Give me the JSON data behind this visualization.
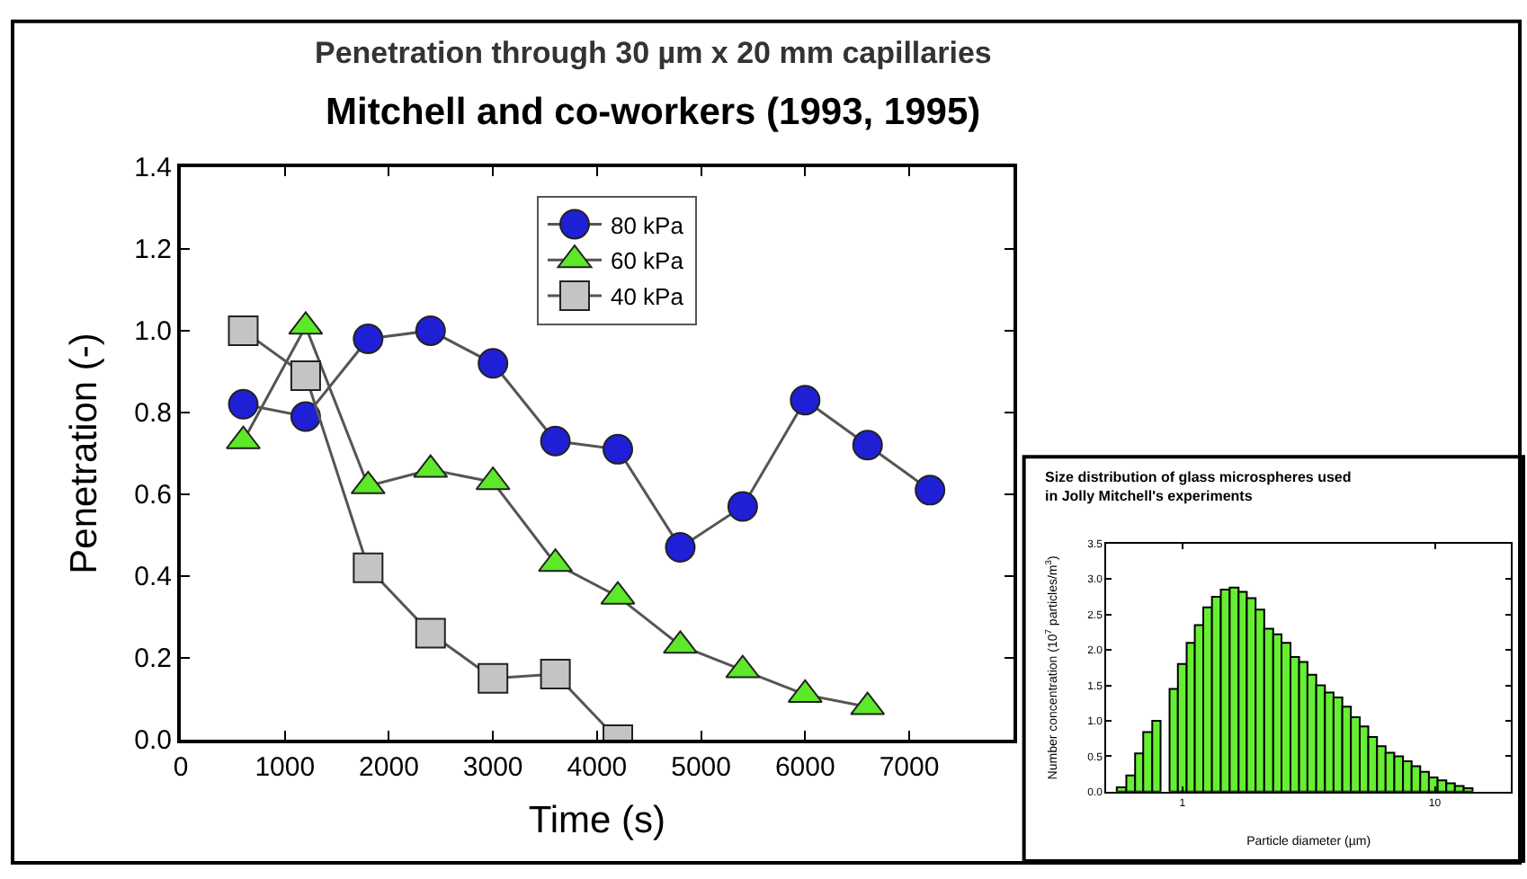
{
  "chart_data": [
    {
      "type": "line",
      "title": "Penetration through 30 µm x 20 mm capillaries",
      "subtitle": "Mitchell and co-workers (1993, 1995)",
      "xlabel": "Time (s)",
      "ylabel": "Penetration (-)",
      "xlim": [
        0,
        8000
      ],
      "xticks": [
        0,
        1000,
        2000,
        3000,
        4000,
        5000,
        6000,
        7000
      ],
      "ylim": [
        0,
        1.4
      ],
      "yticks": [
        {
          "value": 0,
          "label": "0.0"
        },
        {
          "value": 0.2,
          "label": "0.2"
        },
        {
          "value": 0.4,
          "label": "0.4"
        },
        {
          "value": 0.6,
          "label": "0.6"
        },
        {
          "value": 0.8,
          "label": "0.8"
        },
        {
          "value": 1.0,
          "label": "1.0"
        },
        {
          "value": 1.2,
          "label": "1.2"
        },
        {
          "value": 1.4,
          "label": "1.4"
        }
      ],
      "legend": "top right",
      "line_style": "solid",
      "series": [
        {
          "name": "80 kPa",
          "color": "#1f1fd6",
          "marker": "circle",
          "x": [
            600,
            1200,
            1800,
            2400,
            3000,
            3600,
            4200,
            4800,
            5400,
            6000,
            6600,
            7200
          ],
          "values": [
            0.82,
            0.79,
            0.98,
            1.0,
            0.92,
            0.73,
            0.71,
            0.47,
            0.57,
            0.83,
            0.72,
            0.61
          ]
        },
        {
          "name": "60 kPa",
          "color": "#5ee82a",
          "marker": "triangle",
          "x": [
            600,
            1200,
            1800,
            2400,
            3000,
            3600,
            4200,
            4800,
            5400,
            6000,
            6600
          ],
          "values": [
            0.73,
            1.01,
            0.62,
            0.66,
            0.63,
            0.43,
            0.35,
            0.23,
            0.17,
            0.11,
            0.08
          ]
        },
        {
          "name": "40 kPa",
          "color": "#c4c4c4",
          "marker": "square",
          "x": [
            600,
            1200,
            1800,
            2400,
            3000,
            3600,
            4200
          ],
          "values": [
            1.0,
            0.89,
            0.42,
            0.26,
            0.15,
            0.16,
            0.0
          ]
        }
      ]
    },
    {
      "type": "histogram",
      "title": "Size distribution of glass microspheres used in Jolly Mitchell's experiments",
      "xlabel": "Particle diameter (µm)",
      "ylabel": "Number concentration (10$^{7}$ particles/m$^{3}$)",
      "log": "x",
      "xlim": [
        0.5,
        20
      ],
      "xticks": [
        1,
        10
      ],
      "ylim": [
        0,
        3.5
      ],
      "yticks": [
        {
          "value": 0,
          "label": "0.0"
        },
        {
          "value": 0.5,
          "label": "0.5"
        },
        {
          "value": 1.0,
          "label": "1.0"
        },
        {
          "value": 1.5,
          "label": "1.5"
        },
        {
          "value": 2.0,
          "label": "2.0"
        },
        {
          "value": 2.5,
          "label": "2.5"
        },
        {
          "value": 3.0,
          "label": "3.0"
        },
        {
          "value": 3.5,
          "label": "3.5"
        }
      ],
      "color": "#66ee33",
      "bins": [
        0.55,
        0.6,
        0.65,
        0.7,
        0.76,
        0.82,
        0.89,
        0.96,
        1.04,
        1.12,
        1.21,
        1.31,
        1.42,
        1.54,
        1.67,
        1.8,
        1.95,
        2.11,
        2.29,
        2.47,
        2.68,
        2.9,
        3.13,
        3.39,
        3.67,
        3.97,
        4.3,
        4.65,
        5.04,
        5.45,
        5.9,
        6.38,
        6.91,
        7.48,
        8.09,
        8.75,
        9.47,
        10.25,
        11.1,
        12.0,
        13.0,
        14.1
      ],
      "values": [
        0.06,
        0.23,
        0.54,
        0.84,
        1.0,
        null,
        1.45,
        1.8,
        2.1,
        2.35,
        2.6,
        2.75,
        2.85,
        2.88,
        2.82,
        2.73,
        2.57,
        2.3,
        2.22,
        2.1,
        1.9,
        1.83,
        1.65,
        1.5,
        1.4,
        1.33,
        1.2,
        1.05,
        0.92,
        0.77,
        0.64,
        0.55,
        0.5,
        0.43,
        0.36,
        0.28,
        0.2,
        0.16,
        0.12,
        0.08,
        0.05
      ]
    }
  ]
}
